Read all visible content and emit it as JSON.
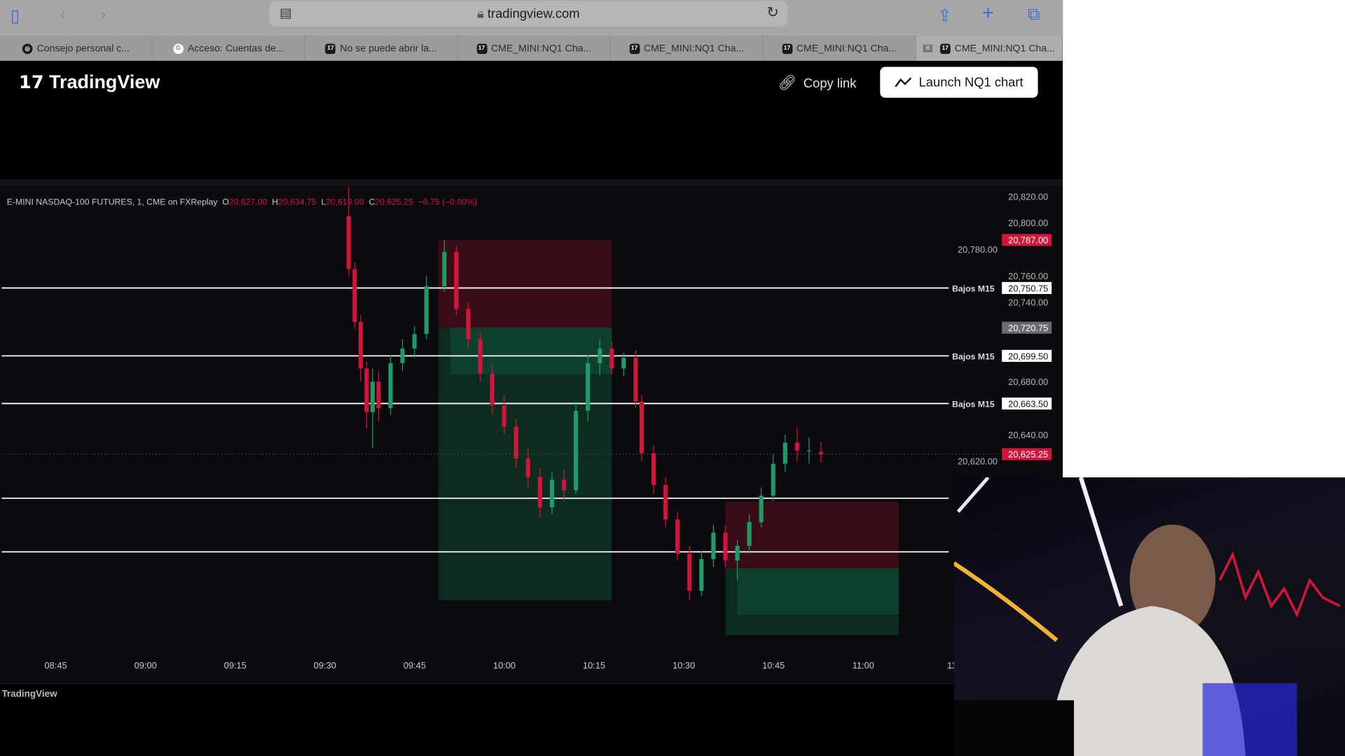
{
  "browser": {
    "url": "tradingview.com",
    "tabs": [
      {
        "label": "Consejo personal c...",
        "icon": "chatgpt-icon"
      },
      {
        "label": "Acceso: Cuentas de...",
        "icon": "google-icon"
      },
      {
        "label": "No se puede abrir la...",
        "icon": "tradingview-icon"
      },
      {
        "label": "CME_MINI:NQ1 Cha...",
        "icon": "tradingview-icon"
      },
      {
        "label": "CME_MINI:NQ1 Cha...",
        "icon": "tradingview-icon"
      },
      {
        "label": "CME_MINI:NQ1 Cha...",
        "icon": "tradingview-icon"
      },
      {
        "label": "CME_MINI:NQ1 Cha...",
        "icon": "tradingview-icon",
        "active": true
      }
    ]
  },
  "header": {
    "logo": "TradingView",
    "copy_link": "Copy link",
    "launch": "Launch NQ1 chart"
  },
  "legend": {
    "symbol": "E-MINI NASDAQ-100 FUTURES, 1, CME on FXReplay",
    "o_label": "O",
    "o": "20,627.00",
    "h_label": "H",
    "h": "20,634.75",
    "l_label": "L",
    "l": "20,619.00",
    "c_label": "C",
    "c": "20,625.25",
    "change": "−0.75 (−0.00%)"
  },
  "footer": {
    "brand": "TradingView"
  },
  "colors": {
    "up": "#1f9a68",
    "down": "#d1163c",
    "bg": "#0b0a0e"
  },
  "chart_data": {
    "type": "candlestick",
    "price_ticks": [
      "20,820.00",
      "20,800.00",
      "20,780.00",
      "20,760.00",
      "20,740.00",
      "20,680.00",
      "20,640.00",
      "20,620.00"
    ],
    "price_tick_values": [
      20820,
      20800,
      20780,
      20760,
      20740,
      20680,
      20640,
      20620
    ],
    "time_ticks": [
      "08:45",
      "09:00",
      "09:15",
      "09:30",
      "09:45",
      "10:00",
      "10:15",
      "10:30",
      "10:45",
      "11:00",
      "11:"
    ],
    "horizontal_lines": [
      {
        "label": "Bajos M15",
        "price": 20750.75,
        "price_label": "20,750.75"
      },
      {
        "label": "Bajos M15",
        "price": 20699.5,
        "price_label": "20,699.50"
      },
      {
        "label": "Bajos M15",
        "price": 20663.5,
        "price_label": "20,663.50"
      },
      {
        "label": "",
        "price": 20592
      },
      {
        "label": "",
        "price": 20551.5
      }
    ],
    "price_badges": [
      {
        "price": 20787,
        "text": "20,787.00",
        "kind": "down"
      },
      {
        "price": 20720.75,
        "text": "20,720.75",
        "kind": "gray"
      },
      {
        "price": 20625.25,
        "text": "20,625.25",
        "kind": "down"
      }
    ],
    "positions": [
      {
        "start": "09:49",
        "end": "10:18",
        "entry": 20720.75,
        "stop": 20787,
        "target": 20515
      },
      {
        "start": "10:37",
        "end": "10:66",
        "entry": 20539,
        "stop": 20589.5,
        "target": 20488.5
      }
    ],
    "last_price": 20625.25,
    "candles": [
      [
        "09:34",
        20805,
        20827,
        20760,
        20765
      ],
      [
        "09:35",
        20765,
        20770,
        20720,
        20725
      ],
      [
        "09:36",
        20725,
        20730,
        20680,
        20690
      ],
      [
        "09:37",
        20690,
        20695,
        20645,
        20657
      ],
      [
        "09:38",
        20657,
        20690,
        20630,
        20680
      ],
      [
        "09:39",
        20680,
        20688,
        20650,
        20660
      ],
      [
        "09:41",
        20660,
        20700,
        20655,
        20694
      ],
      [
        "09:43",
        20694,
        20712,
        20688,
        20705
      ],
      [
        "09:45",
        20705,
        20722,
        20698,
        20716
      ],
      [
        "09:47",
        20716,
        20760,
        20712,
        20752
      ],
      [
        "09:50",
        20752,
        20787,
        20748,
        20778
      ],
      [
        "09:52",
        20778,
        20782,
        20730,
        20735
      ],
      [
        "09:54",
        20735,
        20740,
        20705,
        20712
      ],
      [
        "09:56",
        20712,
        20718,
        20680,
        20686
      ],
      [
        "09:58",
        20686,
        20692,
        20655,
        20662
      ],
      [
        "10:00",
        20662,
        20670,
        20640,
        20646
      ],
      [
        "10:02",
        20646,
        20652,
        20615,
        20622
      ],
      [
        "10:04",
        20622,
        20630,
        20600,
        20608
      ],
      [
        "10:06",
        20608,
        20615,
        20577,
        20585
      ],
      [
        "10:08",
        20585,
        20612,
        20580,
        20606
      ],
      [
        "10:10",
        20606,
        20614,
        20590,
        20598
      ],
      [
        "10:12",
        20598,
        20665,
        20595,
        20658
      ],
      [
        "10:14",
        20658,
        20700,
        20650,
        20694
      ],
      [
        "10:16",
        20694,
        20712,
        20685,
        20705
      ],
      [
        "10:18",
        20705,
        20710,
        20686,
        20690
      ],
      [
        "10:20",
        20690,
        20702,
        20684,
        20698
      ],
      [
        "10:22",
        20698,
        20704,
        20660,
        20665
      ],
      [
        "10:23",
        20665,
        20670,
        20620,
        20626
      ],
      [
        "10:25",
        20626,
        20632,
        20595,
        20602
      ],
      [
        "10:27",
        20602,
        20608,
        20570,
        20576
      ],
      [
        "10:29",
        20576,
        20582,
        20545,
        20550
      ],
      [
        "10:31",
        20550,
        20556,
        20515,
        20522
      ],
      [
        "10:33",
        20522,
        20552,
        20518,
        20546
      ],
      [
        "10:35",
        20546,
        20572,
        20540,
        20566
      ],
      [
        "10:37",
        20566,
        20572,
        20540,
        20545
      ],
      [
        "10:39",
        20545,
        20560,
        20530,
        20556
      ],
      [
        "10:41",
        20556,
        20580,
        20550,
        20574
      ],
      [
        "10:43",
        20574,
        20600,
        20570,
        20594
      ],
      [
        "10:45",
        20594,
        20625,
        20590,
        20618
      ],
      [
        "10:47",
        20618,
        20640,
        20612,
        20634
      ],
      [
        "10:49",
        20634,
        20645,
        20620,
        20628
      ],
      [
        "10:51",
        20628,
        20638,
        20618,
        20628
      ],
      [
        "10:53",
        20627,
        20634.75,
        20619,
        20625.25
      ]
    ]
  }
}
